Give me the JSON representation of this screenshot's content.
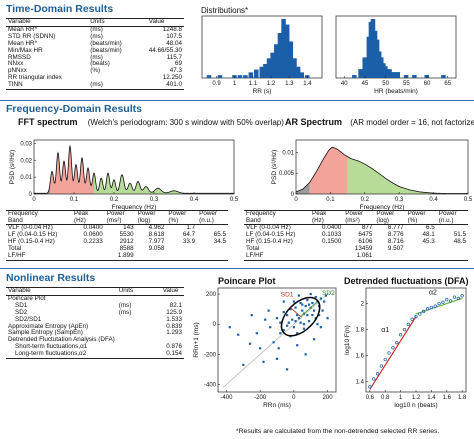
{
  "sections": {
    "time": "Time-Domain Results",
    "freq": "Frequency-Domain Results",
    "nonlinear": "Nonlinear Results"
  },
  "time_table": {
    "headers": [
      "Variable",
      "Units",
      "Value"
    ],
    "rows": [
      {
        "variable": "Mean RR*",
        "units": "(ms)",
        "value": "1248.8"
      },
      {
        "variable": "STD RR (SDNN)",
        "units": "(ms)",
        "value": "107.5"
      },
      {
        "variable": "Mean HR*",
        "units": "(beats/min)",
        "value": "48.04"
      },
      {
        "variable": "Min/Max HR",
        "units": "(beats/min)",
        "value": "44.66/55.30"
      },
      {
        "variable": "RMSSD",
        "units": "(ms)",
        "value": "115.7"
      },
      {
        "variable": "NNxx",
        "units": "(beats)",
        "value": "69"
      },
      {
        "variable": "pNNxx",
        "units": "(%)",
        "value": "47.3"
      },
      {
        "variable": "RR triangular index",
        "units": "",
        "value": "12.250"
      },
      {
        "variable": "TINN",
        "units": "(ms)",
        "value": "401.0"
      }
    ]
  },
  "distributions": {
    "title": "Distributions*",
    "rr_xlabel": "RR (s)",
    "hr_xlabel": "HR (beats/min)"
  },
  "fft": {
    "title": "FFT spectrum",
    "subtitle": "(Welch's periodogram: 300 s window with 50% overlap)",
    "ylabel": "PSD (s²/Hz)",
    "xlabel": "Frequency (Hz)"
  },
  "ar": {
    "title": "AR Spectrum",
    "subtitle": "(AR model order = 16, not factorized)",
    "ylabel": "PSD (s²/Hz)",
    "xlabel": "Frequency (Hz)"
  },
  "fft_table": {
    "h1": [
      "Frequency",
      "Peak",
      "Power",
      "Power",
      "Power"
    ],
    "h2": [
      "Band",
      "(Hz)",
      "(ms²)",
      "(log)",
      "(%)"
    ],
    "rows": [
      {
        "band": "VLF (0-0.04 Hz)",
        "peak": "0.0400",
        "ms2": "143",
        "log": "4.962",
        "pct": "1.7",
        "nu": ""
      },
      {
        "band": "LF (0.04-0.15 Hz)",
        "peak": "0.0600",
        "ms2": "5530",
        "log": "8.618",
        "pct": "64.7",
        "nu": "65.5"
      },
      {
        "band": "HF (0.15-0.4 Hz)",
        "peak": "0.2233",
        "ms2": "2912",
        "log": "7.977",
        "pct": "33.9",
        "nu": "34.5"
      },
      {
        "band": "Total",
        "peak": "",
        "ms2": "8588",
        "log": "9.058",
        "pct": "",
        "nu": ""
      },
      {
        "band": "LF/HF",
        "peak": "",
        "ms2": "1.899",
        "log": "",
        "pct": "",
        "nu": ""
      }
    ],
    "nu_header": "Power",
    "nu_header2": "(n.u.)"
  },
  "ar_table": {
    "h1": [
      "Frequency",
      "Peak",
      "Power",
      "Power",
      "Power",
      "Power"
    ],
    "h2": [
      "Band",
      "(Hz)",
      "(ms²)",
      "(log)",
      "(%)",
      "(n.u.)"
    ],
    "rows": [
      {
        "band": "VLF (0-0.04 Hz)",
        "peak": "0.0400",
        "ms2": "877",
        "log": "6.777",
        "pct": "6.5",
        "nu": ""
      },
      {
        "band": "LF (0.04-0.15 Hz)",
        "peak": "0.1033",
        "ms2": "6475",
        "log": "8.776",
        "pct": "48.1",
        "nu": "51.5"
      },
      {
        "band": "HF (0.15-0.4 Hz)",
        "peak": "0.1500",
        "ms2": "6106",
        "log": "8.716",
        "pct": "45.3",
        "nu": "48.5"
      },
      {
        "band": "Total",
        "peak": "",
        "ms2": "13459",
        "log": "9.507",
        "pct": "",
        "nu": ""
      },
      {
        "band": "LF/HF",
        "peak": "",
        "ms2": "1.061",
        "log": "",
        "pct": "",
        "nu": ""
      }
    ]
  },
  "nonlinear_table": {
    "headers": [
      "Variable",
      "Units",
      "Value"
    ],
    "rows": [
      {
        "variable": "Poincare Plot",
        "units": "",
        "value": "",
        "indent": false
      },
      {
        "variable": "SD1",
        "units": "(ms)",
        "value": "82.1",
        "indent": true
      },
      {
        "variable": "SD2",
        "units": "(ms)",
        "value": "125.9",
        "indent": true
      },
      {
        "variable": "SD2/SD1",
        "units": "",
        "value": "1.533",
        "indent": true
      },
      {
        "variable": "Approximate Entropy (ApEn)",
        "units": "",
        "value": "0.839",
        "indent": false
      },
      {
        "variable": "Sample Entropy (SampEn)",
        "units": "",
        "value": "1.293",
        "indent": false
      },
      {
        "variable": "Detrended Fluctutation Analysis (DFA)",
        "units": "",
        "value": "",
        "indent": false
      },
      {
        "variable": "Short-term fluctuations,α1",
        "units": "",
        "value": "0.876",
        "indent": true
      },
      {
        "variable": "Long-term fluctuations,α2",
        "units": "",
        "value": "0.154",
        "indent": true
      }
    ]
  },
  "poincare": {
    "title": "Poincare Plot",
    "xlabel": "RRn (ms)",
    "ylabel": "RRn+1 (ms)",
    "sd1_label": "SD1",
    "sd2_label": "SD2"
  },
  "dfa": {
    "title": "Detrended fluctuations (DFA)",
    "xlabel": "log10 n (beats)",
    "ylabel": "log10 F(n)",
    "a1_label": "α1",
    "a2_label": "α2"
  },
  "footnote": "*Results are calculated from the non-detrended selected RR series.",
  "chart_data": [
    {
      "type": "bar",
      "name": "rr-histogram",
      "xlabel": "RR (s)",
      "x_ticks": [
        0.9,
        1,
        1.1,
        1.2,
        1.3,
        1.4
      ],
      "xlim": [
        0.82,
        1.48
      ],
      "bins": [
        0.86,
        0.92,
        0.97,
        1.0,
        1.03,
        1.06,
        1.09,
        1.12,
        1.15,
        1.17,
        1.19,
        1.21,
        1.23,
        1.25,
        1.27,
        1.29,
        1.31,
        1.33,
        1.35,
        1.37,
        1.4
      ],
      "counts": [
        1,
        1,
        0,
        1,
        1,
        1,
        2,
        3,
        4,
        5,
        7,
        9,
        12,
        16,
        21,
        19,
        13,
        7,
        4,
        2,
        1
      ],
      "color": "#1a5fa8"
    },
    {
      "type": "bar",
      "name": "hr-histogram",
      "xlabel": "HR (beats/min)",
      "x_ticks": [
        40,
        45,
        50,
        55,
        60,
        65
      ],
      "xlim": [
        38,
        67
      ],
      "bins": [
        42.5,
        44,
        45,
        46,
        46.5,
        47,
        47.5,
        48,
        48.5,
        49,
        49.5,
        50,
        51,
        52,
        53,
        55,
        57,
        60,
        64
      ],
      "counts": [
        1,
        3,
        7,
        14,
        19,
        20,
        16,
        13,
        9,
        7,
        5,
        4,
        3,
        2,
        2,
        1,
        1,
        1,
        1
      ],
      "color": "#1a5fa8"
    },
    {
      "type": "area",
      "name": "fft-spectrum",
      "xlabel": "Frequency (Hz)",
      "ylabel": "PSD (s²/Hz)",
      "x_ticks": [
        0,
        0.1,
        0.2,
        0.3,
        0.4,
        0.5
      ],
      "y_ticks": [
        0,
        0.01,
        0.02,
        0.03
      ],
      "xlim": [
        0,
        0.5
      ],
      "ylim": [
        0,
        0.032
      ],
      "bands": [
        {
          "name": "VLF",
          "range": [
            0,
            0.04
          ],
          "color": "#9a9a9a"
        },
        {
          "name": "LF",
          "range": [
            0.04,
            0.15
          ],
          "color": "#f2a39a"
        },
        {
          "name": "HF",
          "range": [
            0.15,
            0.4
          ],
          "color": "#b7dc98"
        }
      ],
      "peaks": [
        {
          "f": 0.045,
          "a": 0.013,
          "w": 0.004
        },
        {
          "f": 0.06,
          "a": 0.024,
          "w": 0.004
        },
        {
          "f": 0.075,
          "a": 0.019,
          "w": 0.004
        },
        {
          "f": 0.09,
          "a": 0.028,
          "w": 0.004
        },
        {
          "f": 0.105,
          "a": 0.017,
          "w": 0.004
        },
        {
          "f": 0.12,
          "a": 0.021,
          "w": 0.004
        },
        {
          "f": 0.135,
          "a": 0.015,
          "w": 0.004
        },
        {
          "f": 0.15,
          "a": 0.012,
          "w": 0.004
        },
        {
          "f": 0.168,
          "a": 0.009,
          "w": 0.004
        },
        {
          "f": 0.185,
          "a": 0.012,
          "w": 0.004
        },
        {
          "f": 0.2,
          "a": 0.008,
          "w": 0.004
        },
        {
          "f": 0.22,
          "a": 0.011,
          "w": 0.005
        },
        {
          "f": 0.24,
          "a": 0.006,
          "w": 0.005
        },
        {
          "f": 0.26,
          "a": 0.007,
          "w": 0.005
        },
        {
          "f": 0.28,
          "a": 0.004,
          "w": 0.006
        },
        {
          "f": 0.31,
          "a": 0.003,
          "w": 0.008
        },
        {
          "f": 0.35,
          "a": 0.0015,
          "w": 0.01
        }
      ]
    },
    {
      "type": "area",
      "name": "ar-spectrum",
      "xlabel": "Frequency (Hz)",
      "ylabel": "PSD (s²/Hz)",
      "x_ticks": [
        0,
        0.1,
        0.2,
        0.3,
        0.4,
        0.5
      ],
      "y_ticks": [
        0,
        0.005,
        0.01
      ],
      "xlim": [
        0,
        0.5
      ],
      "ylim": [
        0,
        0.013
      ],
      "bands": [
        {
          "name": "VLF",
          "range": [
            0,
            0.04
          ],
          "color": "#9a9a9a"
        },
        {
          "name": "LF",
          "range": [
            0.04,
            0.15
          ],
          "color": "#f2a39a"
        },
        {
          "name": "HF",
          "range": [
            0.15,
            0.4
          ],
          "color": "#b7dc98"
        }
      ],
      "curve": [
        [
          0,
          0.0005
        ],
        [
          0.02,
          0.0012
        ],
        [
          0.04,
          0.0028
        ],
        [
          0.06,
          0.0055
        ],
        [
          0.08,
          0.0085
        ],
        [
          0.095,
          0.0105
        ],
        [
          0.105,
          0.0113
        ],
        [
          0.12,
          0.0108
        ],
        [
          0.14,
          0.0095
        ],
        [
          0.16,
          0.0085
        ],
        [
          0.18,
          0.008
        ],
        [
          0.2,
          0.0072
        ],
        [
          0.22,
          0.0062
        ],
        [
          0.24,
          0.005
        ],
        [
          0.26,
          0.0038
        ],
        [
          0.28,
          0.0027
        ],
        [
          0.3,
          0.0018
        ],
        [
          0.33,
          0.001
        ],
        [
          0.36,
          0.0005
        ],
        [
          0.4,
          0.0002
        ],
        [
          0.45,
          0.0001
        ],
        [
          0.5,
          0.0001
        ]
      ]
    },
    {
      "type": "scatter",
      "name": "poincare-scatter",
      "xlabel": "RRn (ms)",
      "ylabel": "RRn+1 (ms)",
      "x_ticks": [
        -400,
        -200,
        0,
        200
      ],
      "y_ticks": [
        -400,
        -200,
        0,
        200
      ],
      "xlim": [
        -450,
        250
      ],
      "ylim": [
        -450,
        240
      ],
      "points": [
        [
          10,
          20
        ],
        [
          30,
          40
        ],
        [
          60,
          70
        ],
        [
          80,
          60
        ],
        [
          100,
          110
        ],
        [
          120,
          90
        ],
        [
          140,
          150
        ],
        [
          90,
          130
        ],
        [
          50,
          90
        ],
        [
          20,
          60
        ],
        [
          -10,
          30
        ],
        [
          -40,
          -10
        ],
        [
          -60,
          -40
        ],
        [
          -80,
          -60
        ],
        [
          -30,
          10
        ],
        [
          0,
          -20
        ],
        [
          40,
          10
        ],
        [
          70,
          120
        ],
        [
          110,
          140
        ],
        [
          150,
          120
        ],
        [
          160,
          170
        ],
        [
          130,
          180
        ],
        [
          80,
          160
        ],
        [
          180,
          150
        ],
        [
          40,
          140
        ],
        [
          -20,
          100
        ],
        [
          -100,
          40
        ],
        [
          -140,
          -20
        ],
        [
          -60,
          80
        ],
        [
          20,
          -60
        ],
        [
          60,
          -30
        ],
        [
          -120,
          -120
        ],
        [
          -200,
          -160
        ],
        [
          -180,
          -250
        ],
        [
          -300,
          -270
        ],
        [
          -150,
          90
        ],
        [
          -250,
          60
        ],
        [
          -220,
          -60
        ],
        [
          -330,
          -70
        ],
        [
          -100,
          -230
        ],
        [
          -40,
          -300
        ],
        [
          70,
          -200
        ],
        [
          120,
          -100
        ],
        [
          160,
          -20
        ],
        [
          200,
          40
        ],
        [
          -380,
          -20
        ],
        [
          0,
          150
        ],
        [
          -60,
          150
        ],
        [
          110,
          60
        ],
        [
          60,
          0
        ],
        [
          90,
          20
        ],
        [
          130,
          40
        ],
        [
          170,
          90
        ],
        [
          190,
          190
        ],
        [
          100,
          200
        ],
        [
          30,
          190
        ],
        [
          -40,
          60
        ],
        [
          -80,
          10
        ],
        [
          10,
          110
        ],
        [
          50,
          130
        ],
        [
          150,
          60
        ],
        [
          -170,
          30
        ],
        [
          -260,
          -130
        ],
        [
          -90,
          -160
        ],
        [
          20,
          -140
        ],
        [
          140,
          0
        ],
        [
          -20,
          -80
        ]
      ],
      "point_color": "#1a5fa8",
      "ellipse": {
        "cx": 40,
        "cy": 50,
        "sd1": 82.1,
        "sd2": 125.9,
        "angle_deg": 45,
        "color": "#000000"
      },
      "identity_line_color": "#bbbbbb"
    },
    {
      "type": "line",
      "name": "dfa-plot",
      "xlabel": "log10 n (beats)",
      "ylabel": "log10 F(n)",
      "x_ticks": [
        0.6,
        0.8,
        1,
        1.2,
        1.4,
        1.6,
        1.8
      ],
      "y_ticks": [
        1.4,
        1.6,
        1.8,
        2
      ],
      "xlim": [
        0.55,
        1.85
      ],
      "ylim": [
        1.32,
        2.12
      ],
      "points": [
        [
          0.6,
          1.36
        ],
        [
          0.65,
          1.42
        ],
        [
          0.7,
          1.46
        ],
        [
          0.75,
          1.52
        ],
        [
          0.8,
          1.57
        ],
        [
          0.85,
          1.62
        ],
        [
          0.9,
          1.66
        ],
        [
          0.95,
          1.7
        ],
        [
          1.0,
          1.76
        ],
        [
          1.05,
          1.8
        ],
        [
          1.1,
          1.84
        ],
        [
          1.15,
          1.88
        ],
        [
          1.2,
          1.9
        ],
        [
          1.25,
          1.92
        ],
        [
          1.3,
          1.94
        ],
        [
          1.35,
          1.96
        ],
        [
          1.4,
          1.97
        ],
        [
          1.45,
          1.98
        ],
        [
          1.5,
          2.0
        ],
        [
          1.55,
          2.01
        ],
        [
          1.6,
          2.03
        ],
        [
          1.65,
          2.02
        ],
        [
          1.7,
          2.05
        ],
        [
          1.75,
          2.04
        ],
        [
          1.8,
          2.06
        ]
      ],
      "point_color": "#1a5fa8",
      "fit_alpha1": {
        "x": [
          0.6,
          1.2
        ],
        "y": [
          1.34,
          1.9
        ],
        "color": "#cc2222"
      },
      "fit_alpha2": {
        "x": [
          1.2,
          1.8
        ],
        "y": [
          1.92,
          2.04
        ],
        "color": "#55aa33"
      }
    }
  ]
}
